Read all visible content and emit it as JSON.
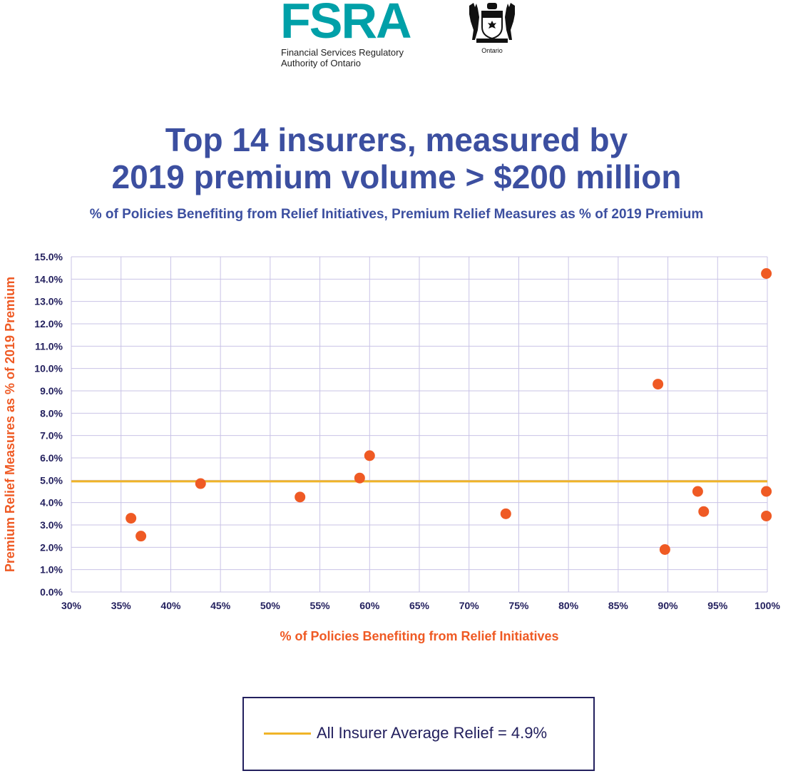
{
  "header": {
    "logo_text": "FSRA",
    "logo_subtitle_line1": "Financial Services Regulatory",
    "logo_subtitle_line2": "Authority of Ontario",
    "crest_label": "Ontario",
    "logo_color": "#00a0a8"
  },
  "colors": {
    "title": "#3c4fa0",
    "points": "#ef5a24",
    "average_line": "#f0b428",
    "ticks": "#23205e",
    "grid": "#c9c3e6"
  },
  "chart_data": {
    "type": "scatter",
    "title_line1": "Top 14 insurers, measured by",
    "title_line2": "2019 premium volume > $200 million",
    "subtitle": "% of Policies Benefiting from Relief Initiatives, Premium Relief Measures as % of 2019 Premium",
    "xlabel": "% of Policies Benefiting from Relief Initiatives",
    "ylabel": "Premium Relief Measures as % of 2019 Premium",
    "xlim": [
      30,
      100
    ],
    "ylim": [
      0,
      15
    ],
    "x_ticks": [
      "30%",
      "35%",
      "40%",
      "45%",
      "50%",
      "55%",
      "60%",
      "65%",
      "70%",
      "75%",
      "80%",
      "85%",
      "90%",
      "95%",
      "100%"
    ],
    "y_ticks": [
      "0.0%",
      "1.0%",
      "2.0%",
      "3.0%",
      "4.0%",
      "5.0%",
      "6.0%",
      "7.0%",
      "8.0%",
      "9.0%",
      "10.0%",
      "11.0%",
      "12.0%",
      "13.0%",
      "14.0%",
      "15.0%"
    ],
    "grid": true,
    "points": [
      {
        "x": 36.0,
        "y": 3.3
      },
      {
        "x": 37.0,
        "y": 2.5
      },
      {
        "x": 43.0,
        "y": 4.85
      },
      {
        "x": 53.0,
        "y": 4.25
      },
      {
        "x": 59.0,
        "y": 5.1
      },
      {
        "x": 60.0,
        "y": 6.1
      },
      {
        "x": 73.7,
        "y": 3.5
      },
      {
        "x": 89.0,
        "y": 9.3
      },
      {
        "x": 89.7,
        "y": 1.9
      },
      {
        "x": 93.0,
        "y": 4.5
      },
      {
        "x": 93.6,
        "y": 3.6
      },
      {
        "x": 99.9,
        "y": 14.25
      },
      {
        "x": 99.9,
        "y": 4.5
      },
      {
        "x": 99.9,
        "y": 3.4
      }
    ],
    "average_line": {
      "y": 4.95,
      "label": "All Insurer Average Relief = 4.9%"
    },
    "legend_position": "bottom-center"
  }
}
